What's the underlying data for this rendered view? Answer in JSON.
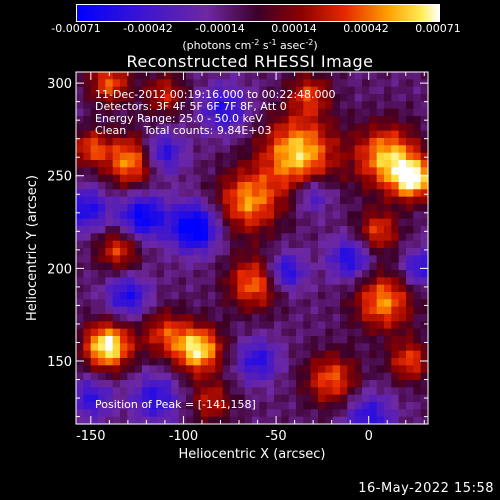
{
  "colorbar": {
    "ticks": [
      "-0.00071",
      "-0.00042",
      "-0.00014",
      "0.00014",
      "0.00042",
      "0.00071"
    ],
    "units_prefix": "(photons cm",
    "units_sup1": "-2",
    "units_mid1": " s",
    "units_sup2": "-1",
    "units_mid2": " asec",
    "units_sup3": "-2",
    "units_suffix": ")"
  },
  "chart_data": {
    "type": "heatmap",
    "title": "Reconstructed RHESSI Image",
    "xlabel": "Heliocentric X (arcsec)",
    "ylabel": "Heliocentric Y (arcsec)",
    "xlim": [
      -158,
      32
    ],
    "ylim": [
      116,
      306
    ],
    "xticks": [
      -150,
      -100,
      -50,
      0
    ],
    "xtick_labels": [
      "-150",
      "-100",
      "-50",
      "0"
    ],
    "yticks": [
      150,
      200,
      250,
      300
    ],
    "ytick_labels": [
      "150",
      "200",
      "250",
      "300"
    ],
    "colorbar_range": [
      -0.00071,
      0.00071
    ],
    "colormap": "blue-purple-red-yellow-white",
    "annotations": [
      "11-Dec-2012 00:19:16.000 to 00:22:48.000",
      "Detectors: 3F 4F 5F 6F 7F 8F, Att 0",
      "Energy Range: 25.0 - 50.0 keV",
      "Clean     Total counts: 9.84E+03"
    ],
    "peak_label": "Position of Peak = [-141,158]",
    "peak": [
      -141,
      158
    ],
    "blobs": [
      {
        "x": -141,
        "y": 158,
        "amp": 1.0,
        "s": 9
      },
      {
        "x": -92,
        "y": 156,
        "amp": 0.9,
        "s": 9
      },
      {
        "x": -38,
        "y": 262,
        "amp": 0.85,
        "s": 14
      },
      {
        "x": 10,
        "y": 260,
        "amp": 0.8,
        "s": 12
      },
      {
        "x": 24,
        "y": 248,
        "amp": 0.85,
        "s": 8
      },
      {
        "x": -65,
        "y": 236,
        "amp": 0.7,
        "s": 12
      },
      {
        "x": -128,
        "y": 258,
        "amp": 0.75,
        "s": 10
      },
      {
        "x": -140,
        "y": 300,
        "amp": 0.6,
        "s": 8
      },
      {
        "x": -110,
        "y": 294,
        "amp": 0.45,
        "s": 8
      },
      {
        "x": -135,
        "y": 210,
        "amp": 0.55,
        "s": 8
      },
      {
        "x": -62,
        "y": 192,
        "amp": 0.65,
        "s": 10
      },
      {
        "x": 8,
        "y": 182,
        "amp": 0.7,
        "s": 11
      },
      {
        "x": -20,
        "y": 140,
        "amp": 0.6,
        "s": 10
      },
      {
        "x": 22,
        "y": 150,
        "amp": 0.55,
        "s": 8
      },
      {
        "x": -110,
        "y": 165,
        "amp": 0.5,
        "s": 9
      },
      {
        "x": -150,
        "y": 265,
        "amp": 0.55,
        "s": 7
      },
      {
        "x": 5,
        "y": 220,
        "amp": 0.55,
        "s": 8
      },
      {
        "x": -32,
        "y": 294,
        "amp": 0.5,
        "s": 8
      },
      {
        "x": -85,
        "y": 128,
        "amp": 0.45,
        "s": 8
      },
      {
        "x": -122,
        "y": 228,
        "amp": -0.7,
        "s": 9
      },
      {
        "x": -94,
        "y": 222,
        "amp": -0.85,
        "s": 9
      },
      {
        "x": -112,
        "y": 262,
        "amp": -0.6,
        "s": 8
      },
      {
        "x": -152,
        "y": 232,
        "amp": -0.55,
        "s": 8
      },
      {
        "x": -45,
        "y": 198,
        "amp": -0.6,
        "s": 7
      },
      {
        "x": -10,
        "y": 205,
        "amp": -0.55,
        "s": 8
      },
      {
        "x": -130,
        "y": 185,
        "amp": -0.55,
        "s": 8
      },
      {
        "x": -60,
        "y": 150,
        "amp": -0.5,
        "s": 8
      },
      {
        "x": -115,
        "y": 130,
        "amp": -0.5,
        "s": 9
      },
      {
        "x": -30,
        "y": 240,
        "amp": -0.45,
        "s": 7
      },
      {
        "x": -78,
        "y": 286,
        "amp": -0.5,
        "s": 9
      },
      {
        "x": 0,
        "y": 120,
        "amp": -0.5,
        "s": 9
      },
      {
        "x": -150,
        "y": 130,
        "amp": -0.45,
        "s": 8
      },
      {
        "x": 28,
        "y": 200,
        "amp": -0.5,
        "s": 7
      }
    ]
  },
  "footer": {
    "timestamp": "16-May-2022 15:58"
  }
}
